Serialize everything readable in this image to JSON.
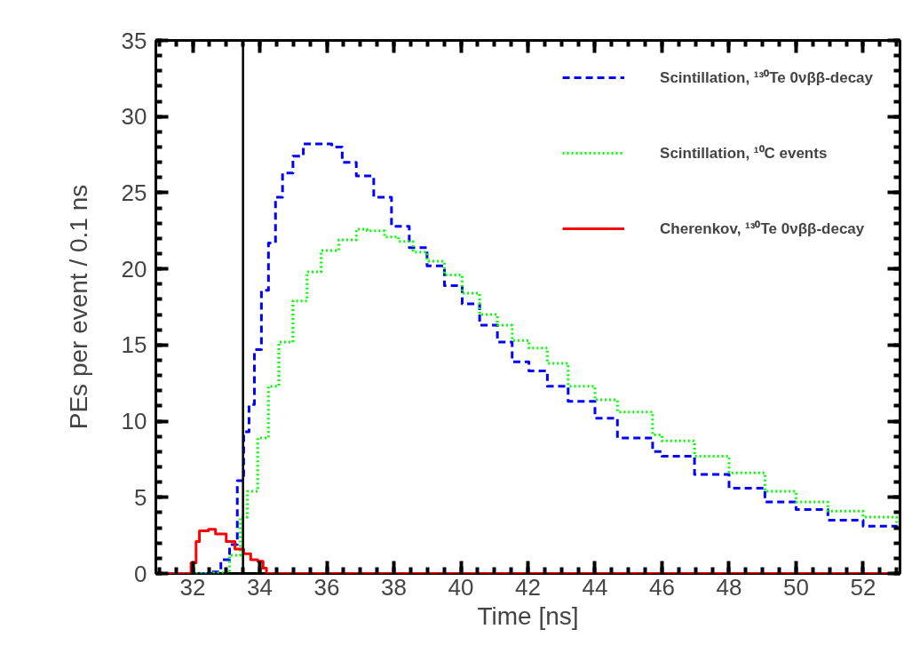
{
  "chart_data": {
    "type": "step",
    "xlabel": "Time [ns]",
    "ylabel": "PEs per event / 0.1 ns",
    "xlim": [
      30.9,
      53.1
    ],
    "ylim": [
      0,
      35
    ],
    "xticks": [
      32,
      34,
      36,
      38,
      40,
      42,
      44,
      46,
      48,
      50,
      52
    ],
    "yticks": [
      0,
      5,
      10,
      15,
      20,
      25,
      30,
      35
    ],
    "grid": false,
    "legend": "top right",
    "marker": "none",
    "ref_lines": [
      {
        "axis": "x",
        "value": 33.5,
        "label": null,
        "color": "#000000",
        "line_style": "solid"
      }
    ],
    "series": [
      {
        "name": "Scintillation, ¹³⁰Te 0νββ-decay",
        "color": "#0000ff",
        "line_style": "dashed",
        "x": [
          30.9,
          32.0,
          32.47,
          32.84,
          33.1,
          33.33,
          33.52,
          33.68,
          33.84,
          34.05,
          34.26,
          34.47,
          34.68,
          34.99,
          35.3,
          35.73,
          36.15,
          36.46,
          36.88,
          37.4,
          37.93,
          38.46,
          38.99,
          39.51,
          40.04,
          40.56,
          41.09,
          41.53,
          42.03,
          42.58,
          43.2,
          44.0,
          44.67,
          45.72,
          46.0,
          46.97,
          48.0,
          49.07,
          50.0,
          50.95,
          52.0,
          53.0
        ],
        "values": [
          0,
          0,
          0.1,
          0.9,
          1.9,
          6.1,
          9.3,
          11.1,
          14.7,
          18.6,
          21.7,
          24.7,
          26.3,
          27.4,
          28.2,
          28.2,
          28.0,
          27.0,
          26.1,
          24.7,
          22.8,
          21.4,
          20.2,
          18.9,
          17.7,
          16.3,
          15.2,
          13.9,
          13.3,
          12.3,
          11.3,
          10.2,
          8.9,
          8.0,
          7.7,
          6.5,
          5.6,
          4.7,
          4.2,
          3.5,
          3.1,
          2.9
        ]
      },
      {
        "name": "Scintillation, ¹⁰C events",
        "color": "#00ff00",
        "line_style": "dotted",
        "x": [
          30.9,
          32.0,
          32.58,
          33.1,
          33.42,
          33.63,
          33.94,
          34.26,
          34.57,
          34.99,
          35.41,
          35.83,
          36.36,
          36.88,
          37.2,
          37.72,
          38.14,
          38.57,
          38.99,
          39.51,
          40.04,
          40.56,
          41.09,
          41.53,
          42.03,
          42.58,
          43.2,
          44.0,
          44.67,
          45.72,
          46.0,
          46.97,
          48.0,
          49.07,
          50.0,
          50.95,
          52.0,
          53.0
        ],
        "values": [
          0,
          0,
          0.05,
          1.2,
          3.7,
          5.4,
          8.9,
          12.3,
          15.2,
          17.9,
          19.8,
          21.2,
          21.9,
          22.6,
          22.5,
          22.1,
          21.8,
          21.1,
          20.5,
          19.6,
          18.4,
          17.0,
          16.3,
          15.3,
          14.8,
          13.8,
          12.3,
          11.4,
          10.6,
          9.1,
          8.7,
          7.7,
          6.6,
          5.4,
          4.7,
          4.1,
          3.7,
          3.2
        ]
      },
      {
        "name": "Cherenkov, ¹³⁰Te 0νββ-decay",
        "color": "#ff0000",
        "line_style": "solid",
        "x": [
          30.9,
          31.84,
          31.95,
          32.1,
          32.2,
          32.47,
          32.68,
          33.0,
          33.26,
          33.52,
          33.73,
          33.94,
          34.1,
          34.2,
          53.1
        ],
        "values": [
          0,
          0,
          0.7,
          2.1,
          2.8,
          2.9,
          2.6,
          2.1,
          1.6,
          1.3,
          0.9,
          0.8,
          0.35,
          0,
          0
        ]
      }
    ]
  }
}
